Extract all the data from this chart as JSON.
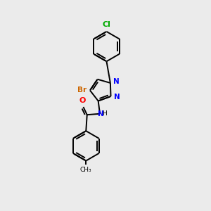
{
  "bg_color": "#ebebeb",
  "bond_color": "#000000",
  "atom_colors": {
    "Cl": "#00aa00",
    "Br": "#cc6600",
    "N": "#0000ff",
    "O": "#ff0000",
    "H": "#000000",
    "C": "#000000"
  },
  "figsize": [
    3.0,
    3.0
  ],
  "dpi": 100
}
